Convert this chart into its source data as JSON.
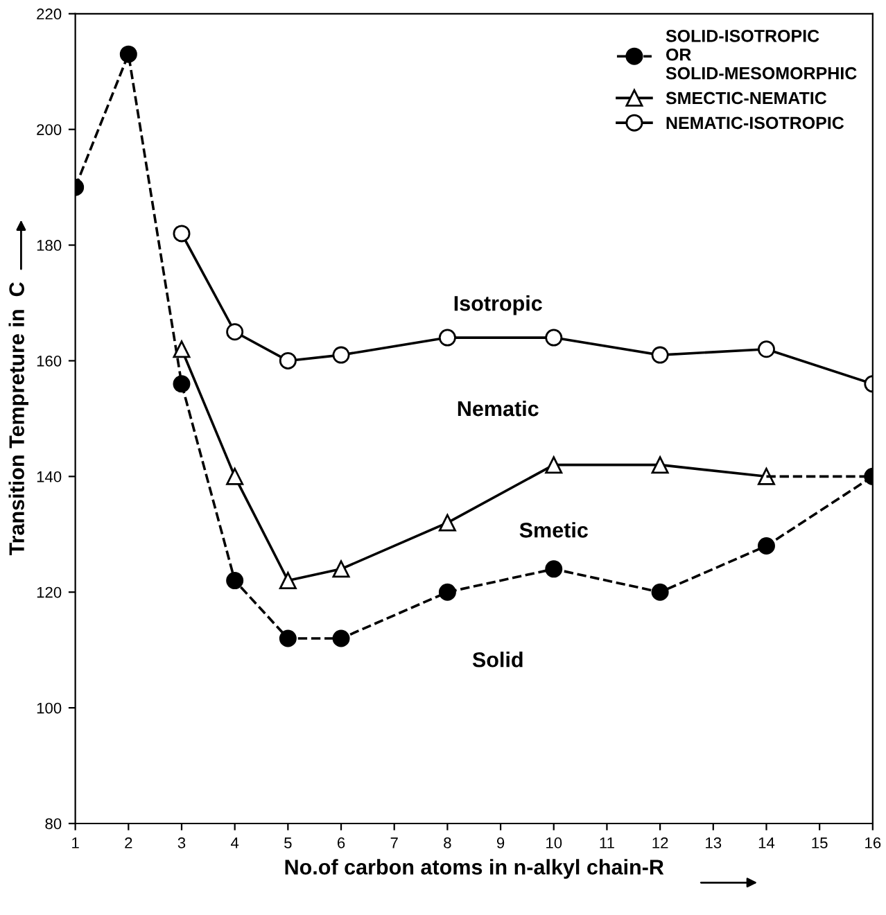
{
  "chart_data": {
    "type": "line",
    "xlabel": "No.of carbon atoms in n-alkyl chain-R",
    "ylabel": "Transition Tempreture in  C",
    "xlim": [
      1,
      16
    ],
    "xticks": [
      1,
      2,
      3,
      4,
      5,
      6,
      7,
      8,
      9,
      10,
      11,
      12,
      13,
      14,
      15,
      16
    ],
    "ylim": [
      80,
      220
    ],
    "yticks": [
      80,
      100,
      120,
      140,
      160,
      180,
      200,
      220
    ],
    "grid": false,
    "legend": "top right",
    "series": [
      {
        "name": "SOLID-ISOTROPIC\nOR\nSOLID-MESOMORPHIC",
        "color": "#000000",
        "marker": "circle",
        "line_style": "dashed",
        "x": [
          1,
          2,
          3,
          4,
          5,
          6,
          8,
          10,
          12,
          14,
          16
        ],
        "values": [
          190,
          213,
          156,
          122,
          112,
          112,
          120,
          124,
          120,
          128,
          140
        ]
      },
      {
        "name": "SMECTIC-NEMATIC",
        "color": "#000000",
        "marker": "triangle",
        "line_style": "solid",
        "x": [
          3,
          4,
          5,
          6,
          8,
          10,
          12,
          14
        ],
        "values": [
          162,
          140,
          122,
          124,
          132,
          142,
          142,
          140
        ]
      },
      {
        "name": "NEMATIC-ISOTROPIC",
        "color": "#000000",
        "marker": "circle",
        "line_style": "solid",
        "x": [
          3,
          4,
          5,
          6,
          8,
          10,
          12,
          14,
          16
        ],
        "values": [
          182,
          165,
          160,
          161,
          164,
          164,
          161,
          162,
          156
        ]
      },
      {
        "color": "#000000",
        "marker": "none",
        "line_style": "dashed",
        "x": [
          14,
          16
        ],
        "values": [
          140,
          140
        ]
      }
    ],
    "annotations": [
      "Isotropic",
      "Nematic",
      "Smetic",
      "Solid"
    ]
  }
}
